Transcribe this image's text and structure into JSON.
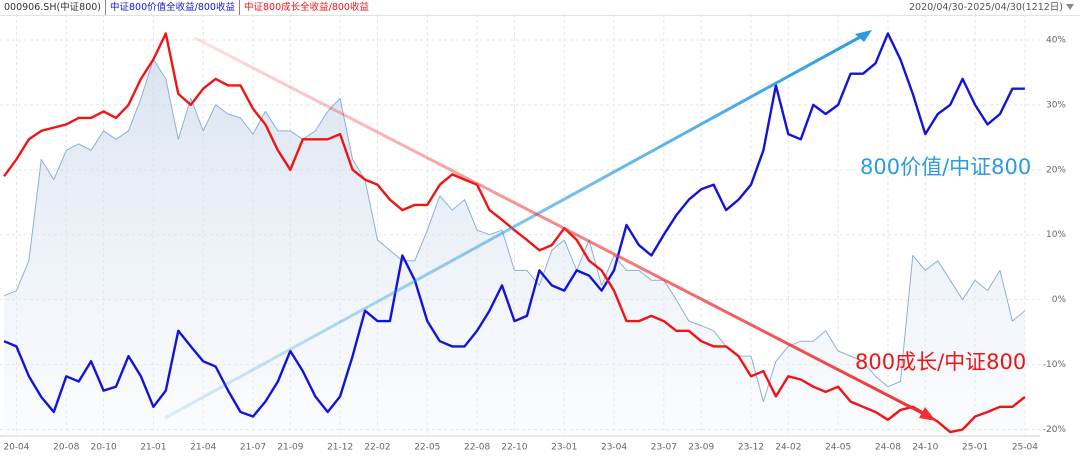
{
  "chart_data": {
    "type": "line",
    "range": "2020/04/30-2025/04/30(1212日)",
    "annotations": [
      "800价值/中证800",
      "800成长/中证800"
    ],
    "categories": [
      null,
      "20-04",
      null,
      null,
      null,
      "20-08",
      null,
      null,
      "20-10",
      null,
      null,
      null,
      "21-01",
      null,
      null,
      null,
      "21-04",
      null,
      null,
      null,
      "21-07",
      null,
      null,
      "21-09",
      null,
      null,
      null,
      "21-12",
      null,
      null,
      "22-02",
      null,
      null,
      null,
      "22-05",
      null,
      null,
      null,
      "22-08",
      null,
      null,
      "22-10",
      null,
      null,
      null,
      "23-01",
      null,
      null,
      null,
      "23-04",
      null,
      null,
      null,
      "23-07",
      null,
      null,
      "23-09",
      null,
      null,
      null,
      "23-12",
      null,
      null,
      "24-02",
      null,
      null,
      null,
      "24-05",
      null,
      null,
      null,
      "24-08",
      null,
      null,
      "24-10",
      null,
      null,
      null,
      "25-01",
      null,
      null,
      null,
      "25-04"
    ],
    "series": [
      {
        "name": "000906.SH(中证800)",
        "color": "#8db0d3",
        "area": true,
        "values": [
          0.6,
          1.4,
          6,
          21.6,
          18.5,
          23,
          24,
          23,
          26,
          24.7,
          26,
          31,
          37,
          34,
          24.7,
          31,
          26,
          30,
          28.6,
          28,
          25.5,
          29,
          26,
          26,
          24.7,
          26,
          29,
          31,
          21.6,
          18.5,
          9.2,
          7.6,
          6,
          6,
          10.7,
          16,
          13.8,
          15.4,
          10.7,
          10,
          10.7,
          4.5,
          4.5,
          2.2,
          7.6,
          9.2,
          4.5,
          9.2,
          2.2,
          6.8,
          4.5,
          4.5,
          3,
          3,
          0,
          -3.3,
          -4,
          -4.8,
          -7.2,
          -8.7,
          -8.7,
          -15.7,
          -9.5,
          -7.2,
          -6.4,
          -6.4,
          -4.8,
          -7.9,
          -8.7,
          -9.5,
          -11.8,
          -13.4,
          -12.6,
          6.8,
          4.5,
          6,
          3,
          0,
          3,
          1.4,
          4.5,
          -3.3,
          -1.7
        ]
      },
      {
        "name": "中证800价值全收益/800收益",
        "color": "#1414d8",
        "values": [
          -6.4,
          -7.2,
          -11.8,
          -15,
          -17.3,
          -11.8,
          -12.6,
          -9.5,
          -14,
          -13.4,
          -8.7,
          -11.8,
          -16.5,
          -14,
          -4.8,
          -7.2,
          -9.5,
          -10.3,
          -14,
          -17.3,
          -18,
          -15.7,
          -12.6,
          -7.9,
          -11,
          -14.9,
          -17.3,
          -14.9,
          -8.7,
          -1.7,
          -3.3,
          -3.3,
          6.8,
          3,
          -3.3,
          -6.4,
          -7.2,
          -7.2,
          -4.8,
          -1.7,
          2.2,
          -3.3,
          -2.5,
          4.5,
          2.2,
          1.4,
          4.5,
          3.7,
          1.4,
          4.5,
          11.5,
          8.4,
          6.8,
          10,
          13,
          15.4,
          17,
          17.7,
          13.8,
          15.4,
          17.7,
          23,
          33,
          25.5,
          24.7,
          30,
          28.6,
          30,
          34.8,
          34.8,
          36.4,
          41,
          37,
          31.7,
          25.5,
          28.6,
          30,
          34,
          30,
          27,
          28.6,
          32.5,
          32.5
        ]
      },
      {
        "name": "中证800成长全收益/800收益",
        "color": "#f01414",
        "values": [
          19,
          21.6,
          24.7,
          26,
          26.5,
          27,
          28,
          28,
          29,
          28,
          30,
          34,
          37,
          41,
          31.7,
          30,
          32.5,
          34,
          33,
          33,
          29.4,
          27,
          23,
          20,
          24.7,
          24.7,
          24.7,
          25.5,
          20,
          18.5,
          17.7,
          15.4,
          13.8,
          14.6,
          14.6,
          17.7,
          19.3,
          18.5,
          17.7,
          13.8,
          12.3,
          10.7,
          9.2,
          7.6,
          8.4,
          11,
          9.2,
          6,
          4.5,
          1.4,
          -3.3,
          -3.3,
          -2.5,
          -3.3,
          -4.8,
          -4.8,
          -6.4,
          -7.2,
          -7.2,
          -8.7,
          -11.8,
          -11,
          -14.9,
          -11.8,
          -12.3,
          -13.4,
          -14.2,
          -13.4,
          -15.7,
          -16.5,
          -17.3,
          -18.5,
          -17,
          -16.5,
          -17.6,
          -18.8,
          -20.4,
          -20,
          -18,
          -17.3,
          -16.5,
          -16.5,
          -15
        ]
      }
    ],
    "ylim": [
      -21,
      44
    ],
    "yticks": [
      {
        "value": -20,
        "label": "-20%"
      },
      {
        "value": -10,
        "label": "-10%"
      },
      {
        "value": 0,
        "label": "0%"
      },
      {
        "value": 10,
        "label": "10%"
      },
      {
        "value": 20,
        "label": "20%"
      },
      {
        "value": 30,
        "label": "30%"
      },
      {
        "value": 40,
        "label": "40%"
      }
    ],
    "grid": true
  }
}
